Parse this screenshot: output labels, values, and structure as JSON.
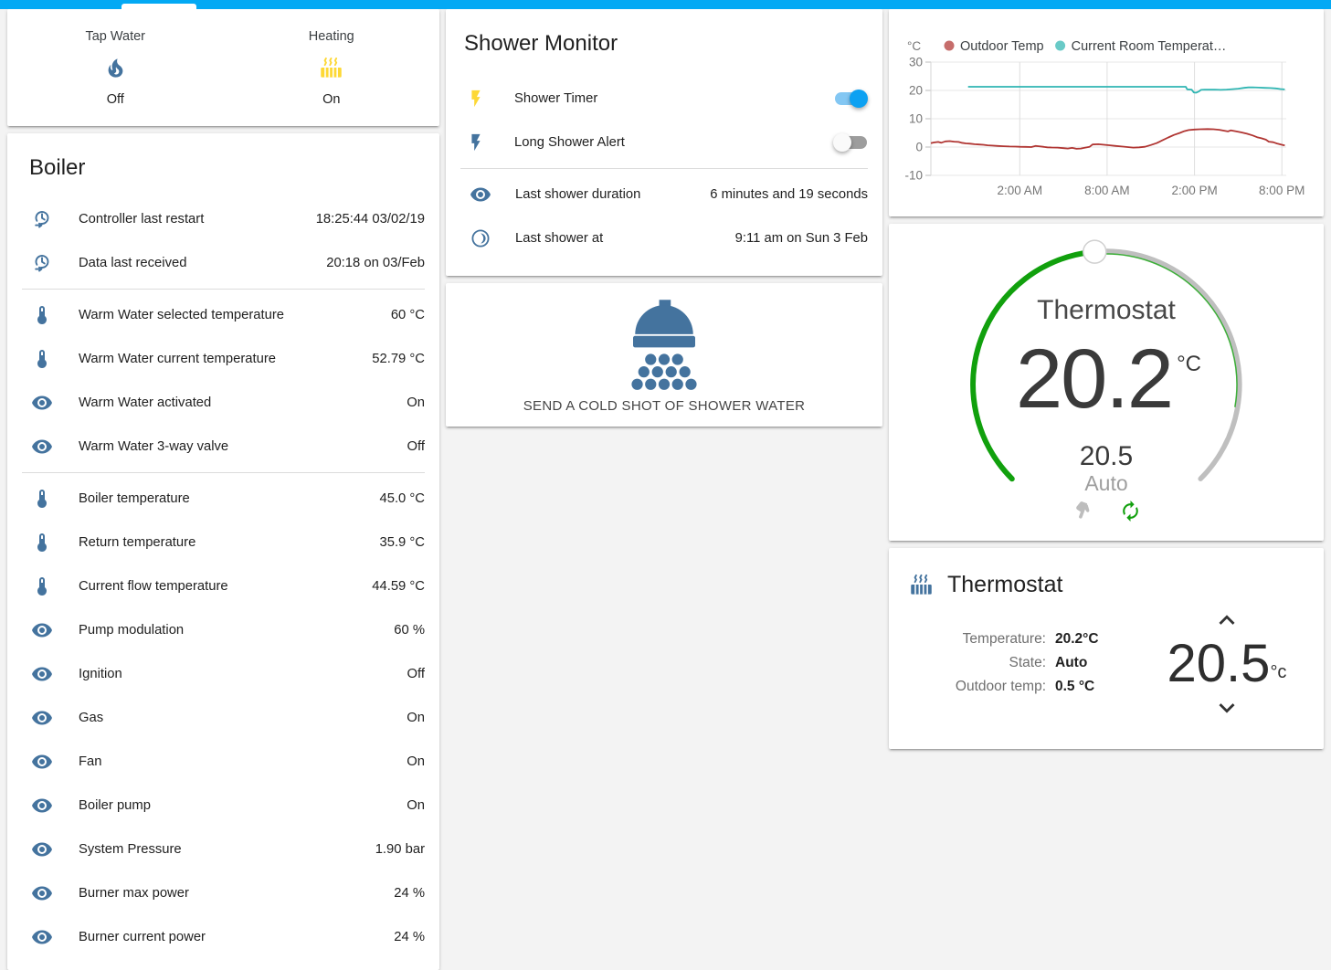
{
  "theme": {
    "primary": "#03a9f4",
    "icon_blue": "#44739e",
    "icon_yellow": "#fdd835",
    "slider_green": "#11a00d",
    "toggle_on_knob": "#0da1f2",
    "toggle_on_track": "#83c7f3",
    "toggle_off_knob": "#fafafa",
    "toggle_off_track": "#9d9d9d"
  },
  "header": {
    "has_active_tab_indicator": true
  },
  "glance_card": {
    "items": [
      {
        "name": "Tap Water",
        "icon": "fire-icon",
        "icon_color": "#44739e",
        "state": "Off"
      },
      {
        "name": "Heating",
        "icon": "radiator-icon",
        "icon_color": "#fdd835",
        "state": "On"
      }
    ]
  },
  "boiler_card": {
    "title": "Boiler",
    "sections": [
      {
        "rows": [
          {
            "icon": "update-clock-icon",
            "label": "Controller last restart",
            "value": "18:25:44 03/02/19"
          },
          {
            "icon": "update-clock-icon",
            "label": "Data last received",
            "value": "20:18 on 03/Feb"
          }
        ]
      },
      {
        "rows": [
          {
            "icon": "thermometer-icon",
            "label": "Warm Water selected temperature",
            "value": "60 °C"
          },
          {
            "icon": "thermometer-icon",
            "label": "Warm Water current temperature",
            "value": "52.79 °C"
          },
          {
            "icon": "eye-icon",
            "label": "Warm Water activated",
            "value": "On"
          },
          {
            "icon": "eye-icon",
            "label": "Warm Water 3-way valve",
            "value": "Off"
          }
        ]
      },
      {
        "rows": [
          {
            "icon": "thermometer-icon",
            "label": "Boiler temperature",
            "value": "45.0 °C"
          },
          {
            "icon": "thermometer-icon",
            "label": "Return temperature",
            "value": "35.9 °C"
          },
          {
            "icon": "thermometer-icon",
            "label": "Current flow temperature",
            "value": "44.59 °C"
          },
          {
            "icon": "eye-icon",
            "label": "Pump modulation",
            "value": "60 %"
          },
          {
            "icon": "eye-icon",
            "label": "Ignition",
            "value": "Off"
          },
          {
            "icon": "eye-icon",
            "label": "Gas",
            "value": "On"
          },
          {
            "icon": "eye-icon",
            "label": "Fan",
            "value": "On"
          },
          {
            "icon": "eye-icon",
            "label": "Boiler pump",
            "value": "On"
          },
          {
            "icon": "eye-icon",
            "label": "System Pressure",
            "value": "1.90 bar"
          },
          {
            "icon": "eye-icon",
            "label": "Burner max power",
            "value": "24 %"
          },
          {
            "icon": "eye-icon",
            "label": "Burner current power",
            "value": "24 %"
          }
        ]
      }
    ]
  },
  "shower_card": {
    "title": "Shower Monitor",
    "toggles": [
      {
        "icon": "flash-icon",
        "icon_color": "#fdd835",
        "label": "Shower Timer",
        "on": true
      },
      {
        "icon": "flash-icon",
        "icon_color": "#44739e",
        "label": "Long Shower Alert",
        "on": false
      }
    ],
    "rows": [
      {
        "icon": "eye-icon",
        "label": "Last shower duration",
        "value": "6 minutes and 19 seconds"
      },
      {
        "icon": "moon-circle-icon",
        "label": "Last shower at",
        "value": "9:11 am on Sun 3 Feb"
      }
    ]
  },
  "cold_shot_card": {
    "icon": "shower-head-icon",
    "icon_color": "#44739e",
    "label": "SEND A COLD SHOT OF SHOWER WATER"
  },
  "chart_data": {
    "type": "line",
    "unit": "°C",
    "grid": true,
    "legend_position": "top",
    "ylim": [
      -10,
      30
    ],
    "yticks": [
      30,
      20,
      10,
      0,
      -10
    ],
    "x_unit": "hours relative to midnight",
    "xlim": [
      -4.1,
      20.3
    ],
    "xticks": [
      {
        "v": 2,
        "label": "2:00 AM"
      },
      {
        "v": 8,
        "label": "8:00 AM"
      },
      {
        "v": 14,
        "label": "2:00 PM"
      },
      {
        "v": 20,
        "label": "8:00 PM"
      }
    ],
    "series": [
      {
        "name": "Outdoor Temp",
        "color": "#b03532",
        "points": [
          [
            -4.1,
            1.4
          ],
          [
            -3.9,
            1.6
          ],
          [
            -3.6,
            1.8
          ],
          [
            -3.4,
            1.5
          ],
          [
            -3.1,
            2.0
          ],
          [
            -2.8,
            2.1
          ],
          [
            -2.5,
            1.9
          ],
          [
            -2.2,
            1.8
          ],
          [
            -2.0,
            1.5
          ],
          [
            -1.7,
            1.3
          ],
          [
            -1.4,
            1.2
          ],
          [
            -1.1,
            1.0
          ],
          [
            -0.8,
            0.9
          ],
          [
            -0.5,
            0.8
          ],
          [
            -0.2,
            0.6
          ],
          [
            0.1,
            0.5
          ],
          [
            0.5,
            0.4
          ],
          [
            0.9,
            0.3
          ],
          [
            1.3,
            0.2
          ],
          [
            1.7,
            0.15
          ],
          [
            2.0,
            0.1
          ],
          [
            2.4,
            0.05
          ],
          [
            2.8,
            0.0
          ],
          [
            3.1,
            0.4
          ],
          [
            3.3,
            0.3
          ],
          [
            3.6,
            0.1
          ],
          [
            3.9,
            -0.1
          ],
          [
            4.2,
            -0.15
          ],
          [
            4.6,
            -0.2
          ],
          [
            5.0,
            -0.4
          ],
          [
            5.3,
            -0.5
          ],
          [
            5.6,
            -0.3
          ],
          [
            5.9,
            -0.6
          ],
          [
            6.2,
            -0.5
          ],
          [
            6.5,
            -0.2
          ],
          [
            6.8,
            0.1
          ],
          [
            7.0,
            0.9
          ],
          [
            7.4,
            1.0
          ],
          [
            7.8,
            0.8
          ],
          [
            8.2,
            0.6
          ],
          [
            8.6,
            0.4
          ],
          [
            9.0,
            0.2
          ],
          [
            9.4,
            0.0
          ],
          [
            9.8,
            -0.2
          ],
          [
            10.2,
            -0.1
          ],
          [
            10.6,
            0.1
          ],
          [
            11.0,
            0.7
          ],
          [
            11.4,
            1.4
          ],
          [
            11.8,
            2.4
          ],
          [
            12.2,
            3.4
          ],
          [
            12.6,
            4.3
          ],
          [
            13.0,
            5.0
          ],
          [
            13.3,
            5.6
          ],
          [
            13.6,
            6.0
          ],
          [
            14.0,
            6.2
          ],
          [
            14.4,
            6.3
          ],
          [
            14.9,
            6.35
          ],
          [
            15.3,
            6.3
          ],
          [
            15.7,
            6.1
          ],
          [
            16.0,
            5.8
          ],
          [
            16.3,
            5.5
          ],
          [
            16.5,
            5.9
          ],
          [
            16.8,
            5.6
          ],
          [
            17.2,
            5.2
          ],
          [
            17.6,
            4.7
          ],
          [
            18.0,
            4.1
          ],
          [
            18.3,
            3.5
          ],
          [
            18.6,
            3.1
          ],
          [
            18.9,
            2.6
          ],
          [
            19.1,
            1.9
          ],
          [
            19.4,
            1.7
          ],
          [
            19.7,
            1.2
          ],
          [
            20.0,
            0.8
          ],
          [
            20.2,
            0.55
          ]
        ]
      },
      {
        "name": "Current Room Temperat…",
        "color": "#2fb5b2",
        "points": [
          [
            -1.55,
            21.3
          ],
          [
            4,
            21.3
          ],
          [
            9,
            21.3
          ],
          [
            13.4,
            21.3
          ],
          [
            13.5,
            20.4
          ],
          [
            13.8,
            20.3
          ],
          [
            13.95,
            19.3
          ],
          [
            14.1,
            19.2
          ],
          [
            14.3,
            19.6
          ],
          [
            14.45,
            20.2
          ],
          [
            14.7,
            20.3
          ],
          [
            15.0,
            20.25
          ],
          [
            15.4,
            20.3
          ],
          [
            15.8,
            20.2
          ],
          [
            16.2,
            20.3
          ],
          [
            16.6,
            20.45
          ],
          [
            17.0,
            20.6
          ],
          [
            17.4,
            20.9
          ],
          [
            17.7,
            21.05
          ],
          [
            18.0,
            21.1
          ],
          [
            18.4,
            21.0
          ],
          [
            18.8,
            20.9
          ],
          [
            19.2,
            20.85
          ],
          [
            19.6,
            20.7
          ],
          [
            19.9,
            20.5
          ],
          [
            20.2,
            20.35
          ]
        ]
      }
    ]
  },
  "dial_card": {
    "title": "Thermostat",
    "current": "20.2",
    "unit": "°C",
    "target": "20.5",
    "mode": "Auto"
  },
  "thermostat_card": {
    "title": "Thermostat",
    "icon": "radiator-icon",
    "rows": [
      {
        "label": "Temperature:",
        "value": "20.2°C"
      },
      {
        "label": "State:",
        "value": "Auto"
      },
      {
        "label": "Outdoor temp:",
        "value": "0.5 °C"
      }
    ],
    "setpoint": "20.5",
    "setpoint_unit": "°c"
  }
}
